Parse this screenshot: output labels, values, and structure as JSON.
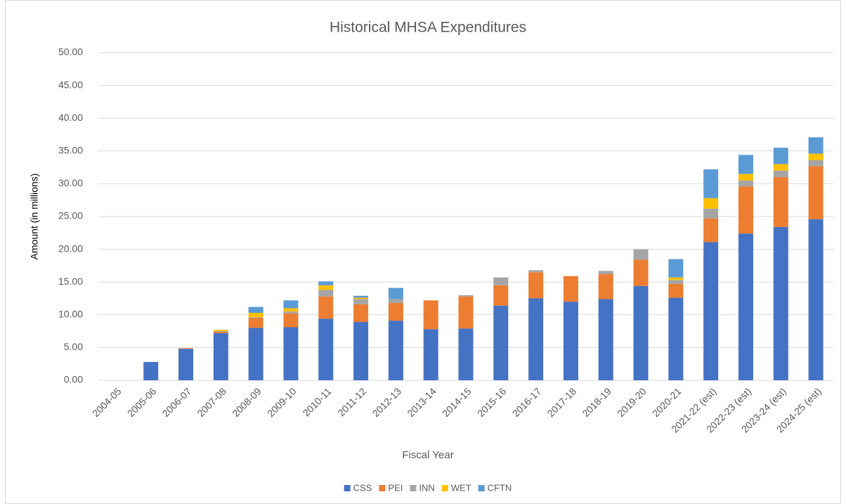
{
  "chart_data": {
    "type": "stacked_bar",
    "title": "Historical MHSA Expenditures",
    "x_label": "Fiscal Year",
    "y_label": "Amount (in millions)",
    "categories": [
      "2004-05",
      "2005-06",
      "2006-07",
      "2007-08",
      "2008-09",
      "2009-10",
      "2010-11",
      "2011-12",
      "2012-13",
      "2013-14",
      "2014-15",
      "2015-16",
      "2016-17",
      "2017-18",
      "2018-19",
      "2019-20",
      "2020-21",
      "2021-22 (est)",
      "2022-23 (est)",
      "2023-24 (est)",
      "2024-25 (est)"
    ],
    "series": [
      {
        "name": "CSS",
        "color": "#4472c4",
        "values": [
          0,
          2.8,
          4.8,
          7.2,
          8.0,
          8.1,
          9.4,
          8.9,
          9.1,
          7.8,
          7.9,
          11.4,
          12.5,
          12.0,
          12.4,
          14.4,
          12.6,
          21.1,
          22.4,
          23.4,
          24.6
        ]
      },
      {
        "name": "PEI",
        "color": "#ed7d31",
        "values": [
          0,
          0,
          0.1,
          0.2,
          1.5,
          2.1,
          3.4,
          2.7,
          2.7,
          4.4,
          4.9,
          3.1,
          4.0,
          3.9,
          3.8,
          4.0,
          2.1,
          3.6,
          7.2,
          7.6,
          8.1
        ]
      },
      {
        "name": "INN",
        "color": "#a5a5a5",
        "values": [
          0,
          0,
          0,
          0.1,
          0.1,
          0.3,
          1.0,
          0.8,
          0.6,
          0,
          0.2,
          1.2,
          0.3,
          0,
          0.5,
          1.6,
          0.6,
          1.5,
          0.9,
          1.0,
          0.9
        ]
      },
      {
        "name": "WET",
        "color": "#ffc000",
        "values": [
          0,
          0,
          0,
          0.2,
          0.7,
          0.5,
          0.7,
          0.2,
          0,
          0,
          0,
          0,
          0,
          0,
          0,
          0,
          0.4,
          1.6,
          1.0,
          1.0,
          1.0
        ]
      },
      {
        "name": "CFTN",
        "color": "#5b9bd5",
        "values": [
          0,
          0,
          0,
          0,
          0.9,
          1.2,
          0.6,
          0.3,
          1.7,
          0,
          0,
          0,
          0,
          0,
          0,
          0,
          2.8,
          4.4,
          2.9,
          2.5,
          2.5
        ]
      }
    ],
    "ylim": [
      0,
      50
    ],
    "yticks": [
      {
        "value": 0,
        "label": "0.00"
      },
      {
        "value": 5,
        "label": "5.00"
      },
      {
        "value": 10,
        "label": "10.00"
      },
      {
        "value": 15,
        "label": "15.00"
      },
      {
        "value": 20,
        "label": "20.00"
      },
      {
        "value": 25,
        "label": "25.00"
      },
      {
        "value": 30,
        "label": "30.00"
      },
      {
        "value": 35,
        "label": "35.00"
      },
      {
        "value": 40,
        "label": "40.00"
      },
      {
        "value": 45,
        "label": "45.00"
      },
      {
        "value": 50,
        "label": "50.00"
      }
    ],
    "grid": true,
    "legend": "bottom"
  }
}
